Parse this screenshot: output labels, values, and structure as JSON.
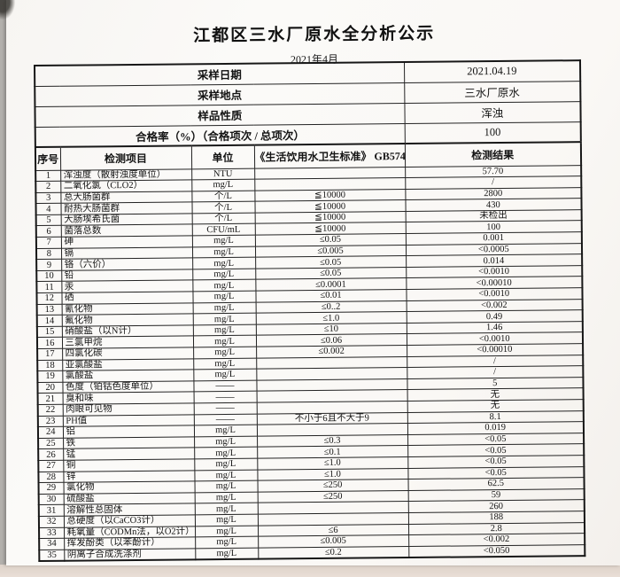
{
  "doc": {
    "title": "江都区三水厂原水全分析公示",
    "subtitle": "2021年4月"
  },
  "summary": {
    "rows": [
      {
        "label": "采样日期",
        "value": "2021.04.19"
      },
      {
        "label": "采样地点",
        "value": "三水厂原水"
      },
      {
        "label": "样品性质",
        "value": "浑浊"
      },
      {
        "label": "合格率（%）（合格项次 / 总项次）",
        "value": "100"
      }
    ]
  },
  "table": {
    "headers": [
      "序号",
      "检测项目",
      "单位",
      "《生活饮用水卫生标准》 GB5749",
      "检测结果"
    ],
    "rows": [
      [
        "1",
        "浑浊度（散射浊度单位）",
        "NTU",
        "",
        "57.70"
      ],
      [
        "2",
        "二氧化氯（CLO2）",
        "mg/L",
        "",
        "/"
      ],
      [
        "3",
        "总大肠菌群",
        "个/L",
        "≦10000",
        "2800"
      ],
      [
        "4",
        "耐热大肠菌群",
        "个/L",
        "≦10000",
        "430"
      ],
      [
        "5",
        "大肠埃希氏菌",
        "个/L",
        "≦10000",
        "未检出"
      ],
      [
        "6",
        "菌落总数",
        "CFU/mL",
        "≦10000",
        "100"
      ],
      [
        "7",
        "砷",
        "mg/L",
        "≤0.05",
        "0.001"
      ],
      [
        "8",
        "镉",
        "mg/L",
        "≤0.005",
        "<0.0005"
      ],
      [
        "9",
        "铬（六价）",
        "mg/L",
        "≤0.05",
        "0.014"
      ],
      [
        "10",
        "铅",
        "mg/L",
        "≤0.05",
        "<0.0010"
      ],
      [
        "11",
        "汞",
        "mg/L",
        "≤0.0001",
        "<0.00010"
      ],
      [
        "12",
        "硒",
        "mg/L",
        "≤0.01",
        "<0.0010"
      ],
      [
        "13",
        "氰化物",
        "mg/L",
        "≤0..2",
        "<0.002"
      ],
      [
        "14",
        "氟化物",
        "mg/L",
        "≤1.0",
        "0.49"
      ],
      [
        "15",
        "硝酸盐（以N计）",
        "mg/L",
        "≤10",
        "1.46"
      ],
      [
        "16",
        "三氯甲烷",
        "mg/L",
        "≤0.06",
        "<0.0010"
      ],
      [
        "17",
        "四氯化碳",
        "mg/L",
        "≤0.002",
        "<0.00010"
      ],
      [
        "18",
        "亚氯酸盐",
        "mg/L",
        "",
        "/"
      ],
      [
        "19",
        "氯酸盐",
        "mg/L",
        "",
        "/"
      ],
      [
        "20",
        "色度（铂钴色度单位）",
        "——",
        "",
        "5"
      ],
      [
        "21",
        "臭和味",
        "——",
        "",
        "无"
      ],
      [
        "22",
        "肉眼可见物",
        "——",
        "",
        "无"
      ],
      [
        "23",
        "PH值",
        "——",
        "不小于6且不大于9",
        "8.1"
      ],
      [
        "24",
        "铝",
        "mg/L",
        "",
        "0.019"
      ],
      [
        "25",
        "铁",
        "mg/L",
        "≤0.3",
        "<0.05"
      ],
      [
        "26",
        "锰",
        "mg/L",
        "≤0.1",
        "<0.05"
      ],
      [
        "27",
        "铜",
        "mg/L",
        "≤1.0",
        "<0.05"
      ],
      [
        "28",
        "锌",
        "mg/L",
        "≤1.0",
        "<0.05"
      ],
      [
        "29",
        "氯化物",
        "mg/L",
        "≤250",
        "62.5"
      ],
      [
        "30",
        "硫酸盐",
        "mg/L",
        "≤250",
        "59"
      ],
      [
        "31",
        "溶解性总固体",
        "mg/L",
        "",
        "260"
      ],
      [
        "32",
        "总硬度（以CaCO3计）",
        "mg/L",
        "",
        "188"
      ],
      [
        "33",
        "耗氧量（CODMn法，以O2计）",
        "mg/L",
        "≤6",
        "2.8"
      ],
      [
        "34",
        "挥发酚类（以苯酚计）",
        "mg/L",
        "≤0.005",
        "<0.002"
      ],
      [
        "35",
        "阴离子合成洗涤剂",
        "mg/L",
        "≤0.2",
        "<0.050"
      ]
    ]
  }
}
